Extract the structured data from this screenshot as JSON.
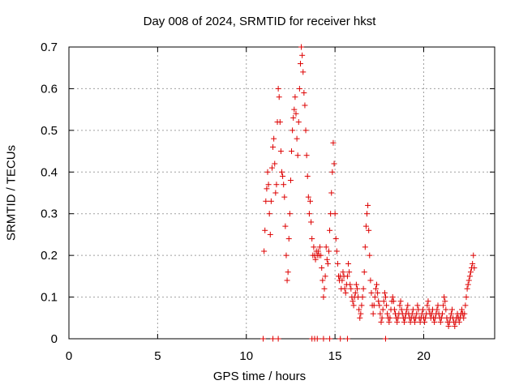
{
  "chart_data": {
    "type": "scatter",
    "title": "Day 008 of 2024, SRMTID for receiver hkst",
    "xlabel": "GPS time / hours",
    "ylabel": "SRMTID / TECUs",
    "xlim": [
      0,
      24
    ],
    "ylim": [
      0,
      0.7
    ],
    "xticks": [
      "0",
      "5",
      "10",
      "15",
      "20"
    ],
    "yticks": [
      "0",
      "0.1",
      "0.2",
      "0.3",
      "0.4",
      "0.5",
      "0.6",
      "0.7"
    ],
    "grid": true,
    "marker": "+",
    "series": [
      {
        "name": "SRMTID",
        "color": "#dd0000",
        "points": [
          [
            11.0,
            0.21
          ],
          [
            11.05,
            0.26
          ],
          [
            11.1,
            0.33
          ],
          [
            11.15,
            0.36
          ],
          [
            11.2,
            0.4
          ],
          [
            11.25,
            0.37
          ],
          [
            11.3,
            0.3
          ],
          [
            11.35,
            0.25
          ],
          [
            11.4,
            0.33
          ],
          [
            11.45,
            0.41
          ],
          [
            11.5,
            0.46
          ],
          [
            11.55,
            0.48
          ],
          [
            11.6,
            0.42
          ],
          [
            11.65,
            0.35
          ],
          [
            11.7,
            0.37
          ],
          [
            11.75,
            0.52
          ],
          [
            11.8,
            0.6
          ],
          [
            11.85,
            0.58
          ],
          [
            11.9,
            0.52
          ],
          [
            11.95,
            0.45
          ],
          [
            12.0,
            0.4
          ],
          [
            12.05,
            0.39
          ],
          [
            12.1,
            0.37
          ],
          [
            12.15,
            0.34
          ],
          [
            12.2,
            0.27
          ],
          [
            12.25,
            0.2
          ],
          [
            12.3,
            0.14
          ],
          [
            12.35,
            0.16
          ],
          [
            12.4,
            0.24
          ],
          [
            12.45,
            0.3
          ],
          [
            12.5,
            0.38
          ],
          [
            12.55,
            0.45
          ],
          [
            12.6,
            0.5
          ],
          [
            12.65,
            0.53
          ],
          [
            12.7,
            0.55
          ],
          [
            12.75,
            0.58
          ],
          [
            12.8,
            0.54
          ],
          [
            12.85,
            0.48
          ],
          [
            12.9,
            0.44
          ],
          [
            12.95,
            0.52
          ],
          [
            13.0,
            0.6
          ],
          [
            13.05,
            0.66
          ],
          [
            13.1,
            0.7
          ],
          [
            13.15,
            0.68
          ],
          [
            13.2,
            0.64
          ],
          [
            13.25,
            0.59
          ],
          [
            13.3,
            0.56
          ],
          [
            13.35,
            0.5
          ],
          [
            13.4,
            0.44
          ],
          [
            13.45,
            0.39
          ],
          [
            13.5,
            0.34
          ],
          [
            13.55,
            0.3
          ],
          [
            13.6,
            0.33
          ],
          [
            13.65,
            0.28
          ],
          [
            13.7,
            0.24
          ],
          [
            13.75,
            0.2
          ],
          [
            13.8,
            0.22
          ],
          [
            13.85,
            0.2
          ],
          [
            13.9,
            0.19
          ],
          [
            13.95,
            0.21
          ],
          [
            14.0,
            0.2
          ],
          [
            14.05,
            0.21
          ],
          [
            14.1,
            0.2
          ],
          [
            14.15,
            0.22
          ],
          [
            14.2,
            0.2
          ],
          [
            14.25,
            0.17
          ],
          [
            14.3,
            0.14
          ],
          [
            14.35,
            0.1
          ],
          [
            14.4,
            0.12
          ],
          [
            14.45,
            0.15
          ],
          [
            14.5,
            0.22
          ],
          [
            14.55,
            0.19
          ],
          [
            14.6,
            0.18
          ],
          [
            14.65,
            0.21
          ],
          [
            14.7,
            0.26
          ],
          [
            14.75,
            0.3
          ],
          [
            14.8,
            0.35
          ],
          [
            14.85,
            0.4
          ],
          [
            14.9,
            0.47
          ],
          [
            14.95,
            0.42
          ],
          [
            15.0,
            0.3
          ],
          [
            15.05,
            0.24
          ],
          [
            15.1,
            0.21
          ],
          [
            15.15,
            0.18
          ],
          [
            15.2,
            0.15
          ],
          [
            15.25,
            0.14
          ],
          [
            15.3,
            0.15
          ],
          [
            15.35,
            0.12
          ],
          [
            15.4,
            0.14
          ],
          [
            15.45,
            0.16
          ],
          [
            15.5,
            0.15
          ],
          [
            15.55,
            0.12
          ],
          [
            15.6,
            0.11
          ],
          [
            15.65,
            0.13
          ],
          [
            15.7,
            0.15
          ],
          [
            15.75,
            0.18
          ],
          [
            15.8,
            0.16
          ],
          [
            15.85,
            0.13
          ],
          [
            15.9,
            0.12
          ],
          [
            15.95,
            0.1
          ],
          [
            16.0,
            0.09
          ],
          [
            16.05,
            0.08
          ],
          [
            16.1,
            0.1
          ],
          [
            16.15,
            0.11
          ],
          [
            16.2,
            0.13
          ],
          [
            16.25,
            0.12
          ],
          [
            16.3,
            0.1
          ],
          [
            16.35,
            0.07
          ],
          [
            16.4,
            0.05
          ],
          [
            16.45,
            0.06
          ],
          [
            16.5,
            0.08
          ],
          [
            16.55,
            0.1
          ],
          [
            16.6,
            0.12
          ],
          [
            16.65,
            0.16
          ],
          [
            16.7,
            0.22
          ],
          [
            16.75,
            0.27
          ],
          [
            16.8,
            0.3
          ],
          [
            16.85,
            0.32
          ],
          [
            16.9,
            0.26
          ],
          [
            16.95,
            0.2
          ],
          [
            17.0,
            0.14
          ],
          [
            17.05,
            0.11
          ],
          [
            17.1,
            0.08
          ],
          [
            17.15,
            0.06
          ],
          [
            17.2,
            0.08
          ],
          [
            17.25,
            0.1
          ],
          [
            17.3,
            0.12
          ],
          [
            17.35,
            0.13
          ],
          [
            17.4,
            0.11
          ],
          [
            17.45,
            0.09
          ],
          [
            17.5,
            0.08
          ],
          [
            17.55,
            0.06
          ],
          [
            17.6,
            0.04
          ],
          [
            17.65,
            0.05
          ],
          [
            17.7,
            0.07
          ],
          [
            17.75,
            0.09
          ],
          [
            17.8,
            0.11
          ],
          [
            17.85,
            0.1
          ],
          [
            17.9,
            0.08
          ],
          [
            17.95,
            0.06
          ],
          [
            18.0,
            0.05
          ],
          [
            18.05,
            0.04
          ],
          [
            18.1,
            0.05
          ],
          [
            18.15,
            0.07
          ],
          [
            18.2,
            0.09
          ],
          [
            18.25,
            0.1
          ],
          [
            18.3,
            0.09
          ],
          [
            18.35,
            0.07
          ],
          [
            18.4,
            0.06
          ],
          [
            18.45,
            0.05
          ],
          [
            18.5,
            0.04
          ],
          [
            18.55,
            0.05
          ],
          [
            18.6,
            0.06
          ],
          [
            18.65,
            0.08
          ],
          [
            18.7,
            0.09
          ],
          [
            18.75,
            0.07
          ],
          [
            18.8,
            0.06
          ],
          [
            18.85,
            0.05
          ],
          [
            18.9,
            0.04
          ],
          [
            18.95,
            0.05
          ],
          [
            19.0,
            0.06
          ],
          [
            19.05,
            0.07
          ],
          [
            19.1,
            0.08
          ],
          [
            19.15,
            0.06
          ],
          [
            19.2,
            0.05
          ],
          [
            19.25,
            0.04
          ],
          [
            19.3,
            0.05
          ],
          [
            19.35,
            0.06
          ],
          [
            19.4,
            0.07
          ],
          [
            19.45,
            0.05
          ],
          [
            19.5,
            0.04
          ],
          [
            19.55,
            0.05
          ],
          [
            19.6,
            0.06
          ],
          [
            19.65,
            0.08
          ],
          [
            19.7,
            0.07
          ],
          [
            19.75,
            0.05
          ],
          [
            19.8,
            0.04
          ],
          [
            19.85,
            0.05
          ],
          [
            19.9,
            0.06
          ],
          [
            19.95,
            0.07
          ],
          [
            20.0,
            0.05
          ],
          [
            20.05,
            0.04
          ],
          [
            20.1,
            0.05
          ],
          [
            20.15,
            0.06
          ],
          [
            20.2,
            0.08
          ],
          [
            20.25,
            0.09
          ],
          [
            20.3,
            0.07
          ],
          [
            20.35,
            0.06
          ],
          [
            20.4,
            0.05
          ],
          [
            20.45,
            0.06
          ],
          [
            20.5,
            0.07
          ],
          [
            20.55,
            0.05
          ],
          [
            20.6,
            0.04
          ],
          [
            20.65,
            0.05
          ],
          [
            20.7,
            0.06
          ],
          [
            20.75,
            0.07
          ],
          [
            20.8,
            0.08
          ],
          [
            20.85,
            0.06
          ],
          [
            20.9,
            0.05
          ],
          [
            20.95,
            0.04
          ],
          [
            21.0,
            0.05
          ],
          [
            21.05,
            0.06
          ],
          [
            21.1,
            0.08
          ],
          [
            21.15,
            0.1
          ],
          [
            21.2,
            0.09
          ],
          [
            21.25,
            0.07
          ],
          [
            21.3,
            0.05
          ],
          [
            21.35,
            0.04
          ],
          [
            21.4,
            0.03
          ],
          [
            21.45,
            0.04
          ],
          [
            21.5,
            0.05
          ],
          [
            21.55,
            0.06
          ],
          [
            21.6,
            0.07
          ],
          [
            21.65,
            0.05
          ],
          [
            21.7,
            0.04
          ],
          [
            21.75,
            0.03
          ],
          [
            21.8,
            0.04
          ],
          [
            21.85,
            0.05
          ],
          [
            21.9,
            0.06
          ],
          [
            21.95,
            0.05
          ],
          [
            22.0,
            0.04
          ],
          [
            22.05,
            0.05
          ],
          [
            22.1,
            0.06
          ],
          [
            22.15,
            0.07
          ],
          [
            22.2,
            0.06
          ],
          [
            22.25,
            0.05
          ],
          [
            22.3,
            0.06
          ],
          [
            22.35,
            0.08
          ],
          [
            22.4,
            0.1
          ],
          [
            22.45,
            0.12
          ],
          [
            22.5,
            0.13
          ],
          [
            22.55,
            0.14
          ],
          [
            22.6,
            0.15
          ],
          [
            22.65,
            0.16
          ],
          [
            22.7,
            0.17
          ],
          [
            22.75,
            0.18
          ],
          [
            22.8,
            0.2
          ],
          [
            22.85,
            0.17
          ],
          [
            10.95,
            0.0
          ],
          [
            11.5,
            0.0
          ],
          [
            11.8,
            0.0
          ],
          [
            13.7,
            0.0
          ],
          [
            13.85,
            0.0
          ],
          [
            14.0,
            0.0
          ],
          [
            14.35,
            0.0
          ],
          [
            14.7,
            0.0
          ],
          [
            15.3,
            0.0
          ],
          [
            15.7,
            0.0
          ],
          [
            17.85,
            0.0
          ]
        ]
      }
    ]
  }
}
